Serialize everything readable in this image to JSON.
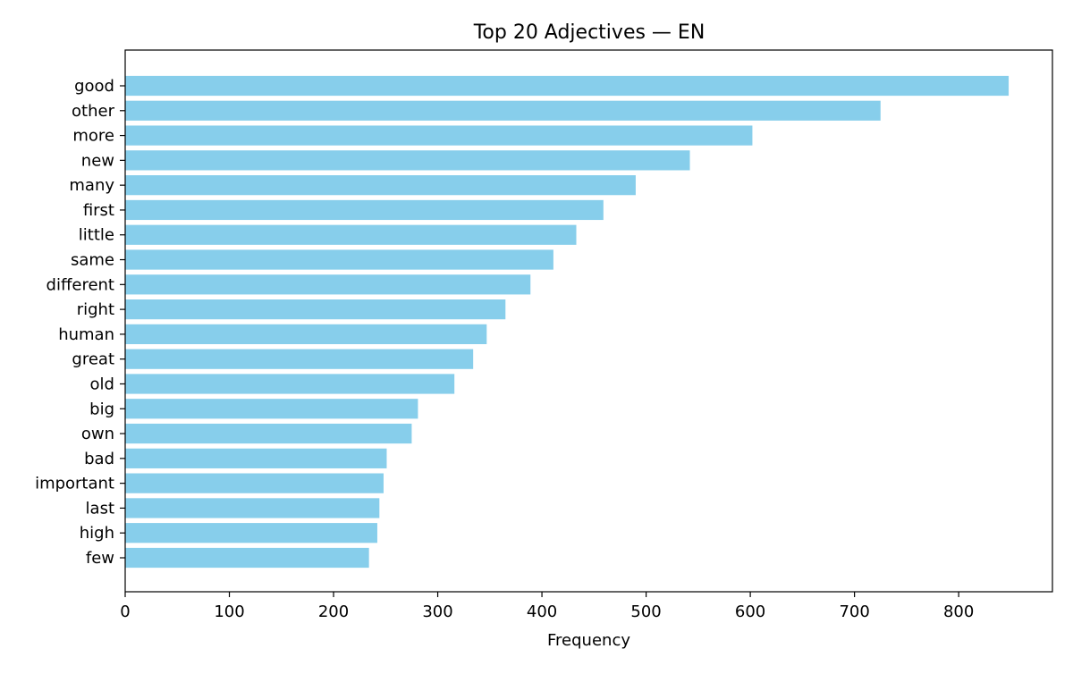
{
  "chart_data": {
    "type": "bar",
    "orientation": "horizontal",
    "title": "Top 20 Adjectives — EN",
    "xlabel": "Frequency",
    "ylabel": "",
    "categories": [
      "good",
      "other",
      "more",
      "new",
      "many",
      "first",
      "little",
      "same",
      "different",
      "right",
      "human",
      "great",
      "old",
      "big",
      "own",
      "bad",
      "important",
      "last",
      "high",
      "few"
    ],
    "values": [
      848,
      725,
      602,
      542,
      490,
      459,
      433,
      411,
      389,
      365,
      347,
      334,
      316,
      281,
      275,
      251,
      248,
      244,
      242,
      234
    ],
    "xlim": [
      0,
      890
    ],
    "xticks": [
      0,
      100,
      200,
      300,
      400,
      500,
      600,
      700,
      800
    ],
    "bar_color": "#87ceeb",
    "grid": false,
    "legend": "none"
  }
}
